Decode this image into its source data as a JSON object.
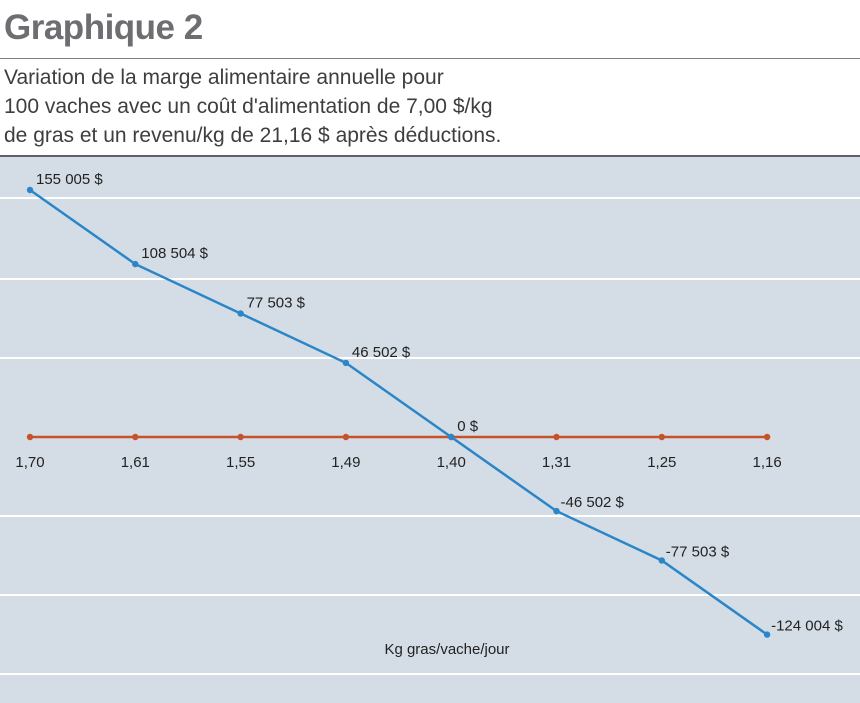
{
  "heading": "Graphique 2",
  "subtitle_lines": [
    "Variation de la marge alimentaire annuelle pour",
    "100 vaches avec un coût d'alimentation de 7,00 $/kg",
    "de gras et un revenu/kg de 21,16 $ après déductions."
  ],
  "chart_data": {
    "type": "line",
    "title": "Graphique 2",
    "subtitle": "Variation de la marge alimentaire annuelle pour 100 vaches avec un coût d'alimentation de 7,00 $/kg de gras et un revenu/kg de 21,16 $ après déductions.",
    "xlabel": "Kg gras/vache/jour",
    "ylabel": "",
    "categories": [
      "1,70",
      "1,61",
      "1,55",
      "1,49",
      "1,40",
      "1,31",
      "1,25",
      "1,16"
    ],
    "series": [
      {
        "values": [
          155005,
          108504,
          77503,
          46502,
          0,
          -46502,
          -77503,
          -124004
        ],
        "labels": [
          "155 005 $",
          "108 504 $",
          "77 503 $",
          "46 502 $",
          "0 $",
          "-46 502 $",
          "-77 503 $",
          "-124 004 $"
        ],
        "color": "#2a86c8"
      },
      {
        "values": [
          0,
          0,
          0,
          0,
          0,
          0,
          0,
          0
        ],
        "color": "#c9512a"
      }
    ],
    "grid": true,
    "background_color": "#d4dde6",
    "grid_color": "#ffffff"
  }
}
